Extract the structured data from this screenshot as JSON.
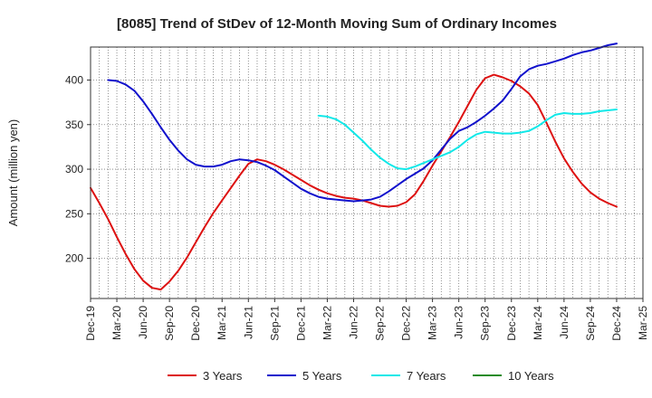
{
  "chart_data": {
    "type": "line",
    "title": "[8085]  Trend of StDev of 12-Month Moving Sum of Ordinary Incomes",
    "ylabel": "Amount (million yen)",
    "xlabel": "",
    "ylim": [
      155,
      437
    ],
    "yticks": [
      200,
      250,
      300,
      350,
      400
    ],
    "xticks": [
      "Dec-19",
      "Mar-20",
      "Jun-20",
      "Sep-20",
      "Dec-20",
      "Mar-21",
      "Jun-21",
      "Sep-21",
      "Dec-21",
      "Mar-22",
      "Jun-22",
      "Sep-22",
      "Dec-22",
      "Mar-23",
      "Jun-23",
      "Sep-23",
      "Dec-23",
      "Mar-24",
      "Jun-24",
      "Sep-24",
      "Dec-24",
      "Mar-25"
    ],
    "x_unit": "months since Dec-19",
    "grid": true,
    "legend_position": "bottom",
    "series": [
      {
        "name": "3 Years",
        "color": "#dd1111",
        "x": [
          0,
          1,
          2,
          3,
          4,
          5,
          6,
          7,
          8,
          9,
          10,
          11,
          12,
          13,
          14,
          15,
          16,
          17,
          18,
          19,
          20,
          21,
          22,
          23,
          24,
          25,
          26,
          27,
          28,
          29,
          30,
          31,
          32,
          33,
          34,
          35,
          36,
          37,
          38,
          39,
          40,
          41,
          42,
          43,
          44,
          45,
          46,
          47,
          48,
          49,
          50,
          51,
          52,
          53,
          54,
          55,
          56,
          57,
          58,
          59,
          60
        ],
        "values": [
          279,
          262,
          244,
          224,
          205,
          188,
          175,
          167,
          165,
          174,
          186,
          201,
          218,
          235,
          251,
          265,
          279,
          293,
          306,
          311,
          309,
          305,
          300,
          294,
          288,
          282,
          277,
          273,
          270,
          268,
          267,
          265,
          262,
          259,
          258,
          259,
          263,
          272,
          287,
          304,
          320,
          336,
          353,
          371,
          389,
          402,
          406,
          403,
          399,
          393,
          385,
          372,
          352,
          331,
          312,
          297,
          284,
          274,
          267,
          262,
          258
        ]
      },
      {
        "name": "5 Years",
        "color": "#1111cc",
        "x": [
          2,
          3,
          4,
          5,
          6,
          7,
          8,
          9,
          10,
          11,
          12,
          13,
          14,
          15,
          16,
          17,
          18,
          19,
          20,
          21,
          22,
          23,
          24,
          25,
          26,
          27,
          28,
          29,
          30,
          31,
          32,
          33,
          34,
          35,
          36,
          37,
          38,
          39,
          40,
          41,
          42,
          43,
          44,
          45,
          46,
          47,
          48,
          49,
          50,
          51,
          52,
          53,
          54,
          55,
          56,
          57,
          58,
          59,
          60
        ],
        "values": [
          400,
          399,
          395,
          388,
          376,
          362,
          347,
          333,
          321,
          311,
          305,
          303,
          303,
          305,
          309,
          311,
          310,
          308,
          304,
          299,
          292,
          285,
          278,
          273,
          269,
          267,
          266,
          265,
          264,
          265,
          266,
          269,
          275,
          282,
          289,
          295,
          301,
          310,
          322,
          334,
          343,
          347,
          353,
          360,
          368,
          377,
          390,
          404,
          412,
          416,
          418,
          421,
          424,
          428,
          431,
          433,
          436,
          439,
          441
        ]
      },
      {
        "name": "7 Years",
        "color": "#11e8e8",
        "x": [
          26,
          27,
          28,
          29,
          30,
          31,
          32,
          33,
          34,
          35,
          36,
          37,
          38,
          39,
          40,
          41,
          42,
          43,
          44,
          45,
          46,
          47,
          48,
          49,
          50,
          51,
          52,
          53,
          54,
          55,
          56,
          57,
          58,
          59,
          60
        ],
        "values": [
          360,
          359,
          356,
          350,
          341,
          332,
          322,
          313,
          306,
          301,
          300,
          303,
          307,
          311,
          315,
          319,
          325,
          333,
          339,
          342,
          341,
          340,
          340,
          341,
          343,
          348,
          355,
          361,
          363,
          362,
          362,
          363,
          365,
          366,
          367
        ]
      },
      {
        "name": "10 Years",
        "color": "#228b22",
        "x": [],
        "values": []
      }
    ]
  }
}
